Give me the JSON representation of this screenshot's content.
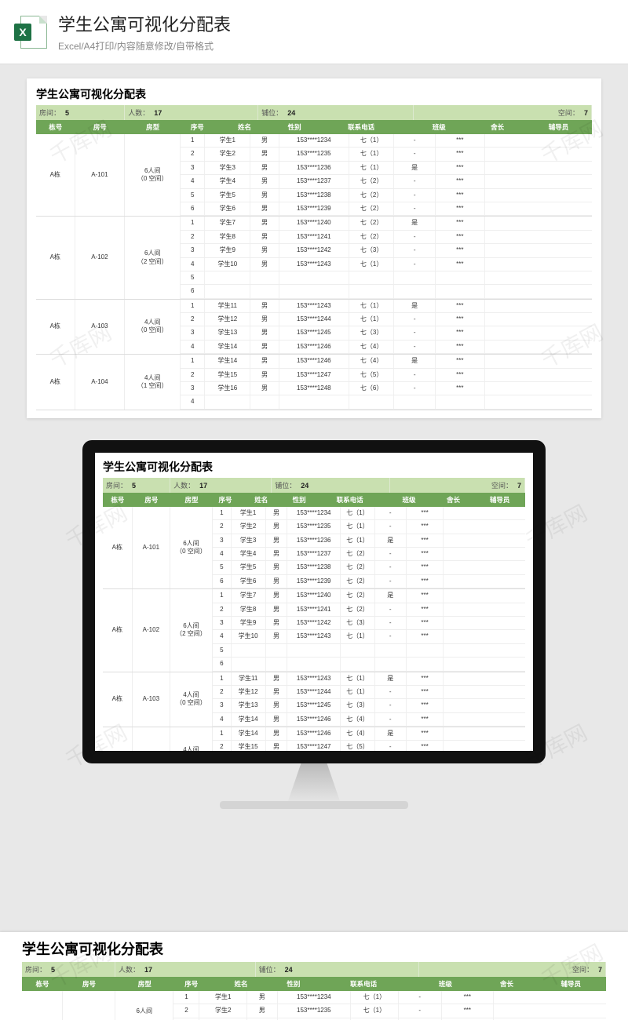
{
  "header": {
    "title": "学生公寓可视化分配表",
    "subtitle": "Excel/A4打印/内容随意修改/自带格式",
    "icon_letter": "X"
  },
  "watermark": "千库网",
  "sheet": {
    "title": "学生公寓可视化分配表",
    "summary": {
      "rooms_label": "房间：",
      "rooms_val": "5",
      "people_label": "人数：",
      "people_val": "17",
      "beds_label": "铺位：",
      "beds_val": "24",
      "vac_label": "空间：",
      "vac_val": "7"
    },
    "columns": [
      "栋号",
      "房号",
      "房型",
      "序号",
      "姓名",
      "性别",
      "联系电话",
      "班级",
      "舍长",
      "辅导员"
    ],
    "colors": {
      "summary_bg": "#c9e0b0",
      "header_bg": "#6fa557",
      "header_fg": "#ffffff",
      "border": "#eeeeee"
    },
    "blocks": [
      {
        "building": "A栋",
        "room": "A-101",
        "type": "6人间\n（0 空间）",
        "rows": [
          {
            "seq": "1",
            "name": "学生1",
            "sex": "男",
            "phone": "153****1234",
            "class": "七（1）",
            "leader": "-",
            "tutor": "***"
          },
          {
            "seq": "2",
            "name": "学生2",
            "sex": "男",
            "phone": "153****1235",
            "class": "七（1）",
            "leader": "-",
            "tutor": "***"
          },
          {
            "seq": "3",
            "name": "学生3",
            "sex": "男",
            "phone": "153****1236",
            "class": "七（1）",
            "leader": "是",
            "tutor": "***"
          },
          {
            "seq": "4",
            "name": "学生4",
            "sex": "男",
            "phone": "153****1237",
            "class": "七（2）",
            "leader": "-",
            "tutor": "***"
          },
          {
            "seq": "5",
            "name": "学生5",
            "sex": "男",
            "phone": "153****1238",
            "class": "七（2）",
            "leader": "-",
            "tutor": "***"
          },
          {
            "seq": "6",
            "name": "学生6",
            "sex": "男",
            "phone": "153****1239",
            "class": "七（2）",
            "leader": "-",
            "tutor": "***"
          }
        ]
      },
      {
        "building": "A栋",
        "room": "A-102",
        "type": "6人间\n（2 空间）",
        "rows": [
          {
            "seq": "1",
            "name": "学生7",
            "sex": "男",
            "phone": "153****1240",
            "class": "七（2）",
            "leader": "是",
            "tutor": "***"
          },
          {
            "seq": "2",
            "name": "学生8",
            "sex": "男",
            "phone": "153****1241",
            "class": "七（2）",
            "leader": "-",
            "tutor": "***"
          },
          {
            "seq": "3",
            "name": "学生9",
            "sex": "男",
            "phone": "153****1242",
            "class": "七（3）",
            "leader": "-",
            "tutor": "***"
          },
          {
            "seq": "4",
            "name": "学生10",
            "sex": "男",
            "phone": "153****1243",
            "class": "七（1）",
            "leader": "-",
            "tutor": "***"
          },
          {
            "seq": "5",
            "name": "",
            "sex": "",
            "phone": "",
            "class": "",
            "leader": "",
            "tutor": ""
          },
          {
            "seq": "6",
            "name": "",
            "sex": "",
            "phone": "",
            "class": "",
            "leader": "",
            "tutor": ""
          }
        ]
      },
      {
        "building": "A栋",
        "room": "A-103",
        "type": "4人间\n（0 空间）",
        "rows": [
          {
            "seq": "1",
            "name": "学生11",
            "sex": "男",
            "phone": "153****1243",
            "class": "七（1）",
            "leader": "是",
            "tutor": "***"
          },
          {
            "seq": "2",
            "name": "学生12",
            "sex": "男",
            "phone": "153****1244",
            "class": "七（1）",
            "leader": "-",
            "tutor": "***"
          },
          {
            "seq": "3",
            "name": "学生13",
            "sex": "男",
            "phone": "153****1245",
            "class": "七（3）",
            "leader": "-",
            "tutor": "***"
          },
          {
            "seq": "4",
            "name": "学生14",
            "sex": "男",
            "phone": "153****1246",
            "class": "七（4）",
            "leader": "-",
            "tutor": "***"
          }
        ]
      },
      {
        "building": "A栋",
        "room": "A-104",
        "type": "4人间\n（1 空间）",
        "rows": [
          {
            "seq": "1",
            "name": "学生14",
            "sex": "男",
            "phone": "153****1246",
            "class": "七（4）",
            "leader": "是",
            "tutor": "***"
          },
          {
            "seq": "2",
            "name": "学生15",
            "sex": "男",
            "phone": "153****1247",
            "class": "七（5）",
            "leader": "-",
            "tutor": "***"
          },
          {
            "seq": "3",
            "name": "学生16",
            "sex": "男",
            "phone": "153****1248",
            "class": "七（6）",
            "leader": "-",
            "tutor": "***"
          },
          {
            "seq": "4",
            "name": "",
            "sex": "",
            "phone": "",
            "class": "",
            "leader": "",
            "tutor": ""
          }
        ]
      }
    ],
    "bottom_partial_rows": [
      {
        "seq": "1",
        "name": "学生1",
        "sex": "男",
        "phone": "153****1234",
        "class": "七（1）",
        "leader": "-",
        "tutor": "***"
      },
      {
        "seq": "2",
        "name": "学生2",
        "sex": "男",
        "phone": "153****1235",
        "class": "七（1）",
        "leader": "-",
        "tutor": "***"
      },
      {
        "seq": "3",
        "name": "学生3",
        "sex": "男",
        "phone": "153****1236",
        "class": "七（1）",
        "leader": "是",
        "tutor": "***"
      }
    ],
    "bottom_partial_type_label": "6人间"
  }
}
